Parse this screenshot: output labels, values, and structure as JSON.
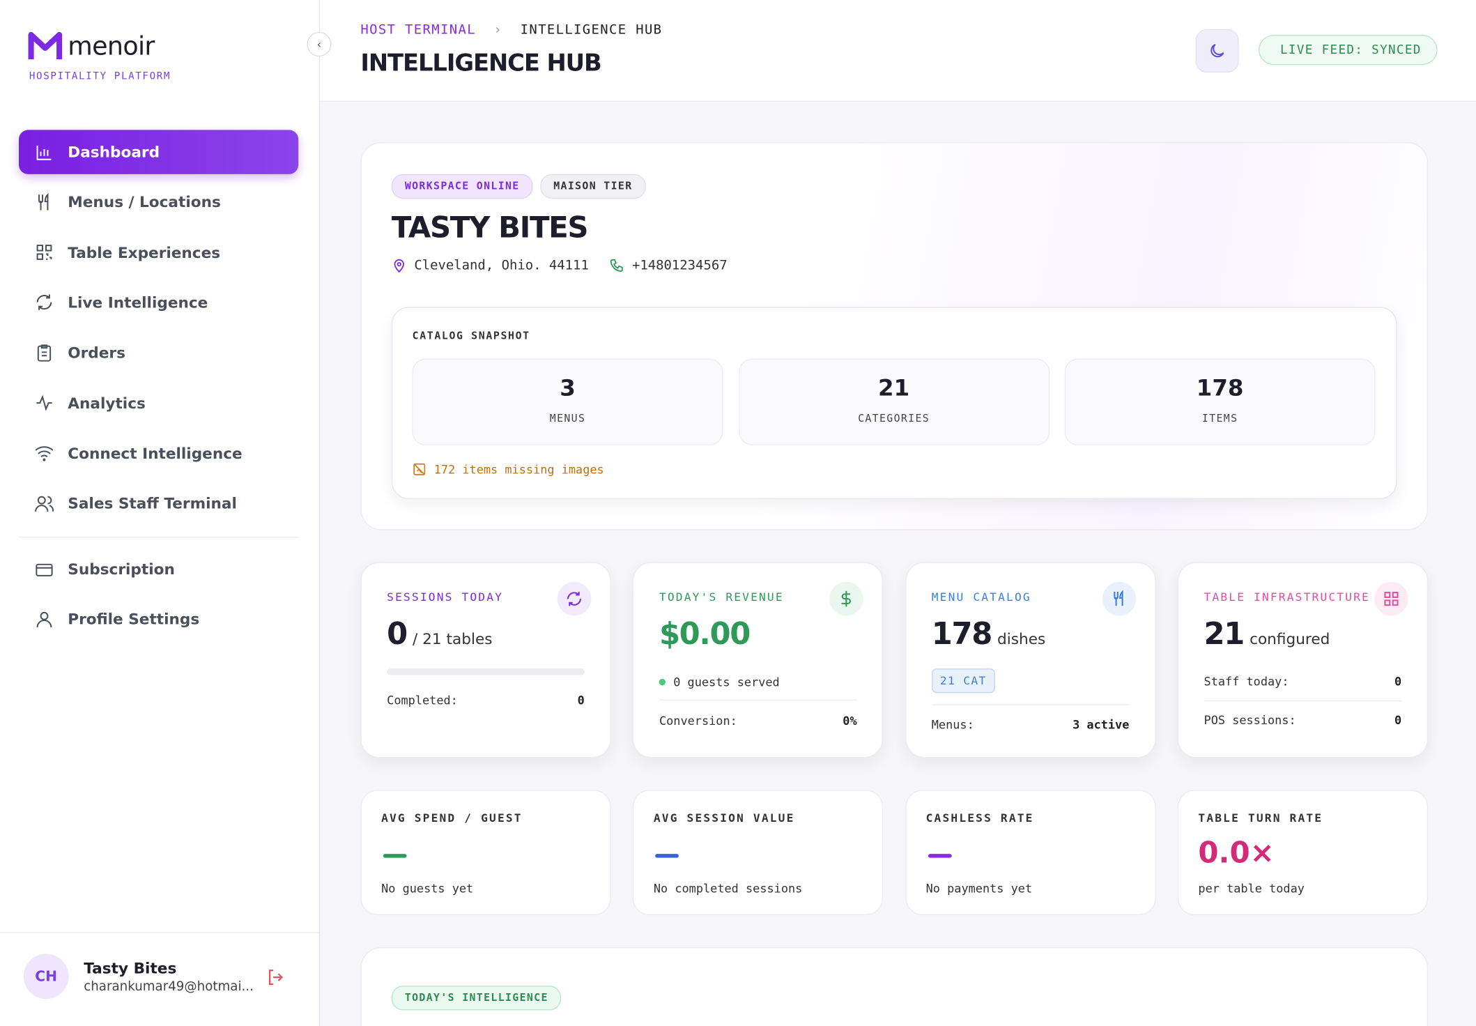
{
  "sidebar": {
    "brand": "menoir",
    "tagline": "HOSPITALITY PLATFORM",
    "nav": [
      "Dashboard",
      "Menus / Locations",
      "Table Experiences",
      "Live Intelligence",
      "Orders",
      "Analytics",
      "Connect Intelligence",
      "Sales Staff Terminal"
    ],
    "nav2": [
      "Subscription",
      "Profile Settings"
    ],
    "user": {
      "initials": "CH",
      "name": "Tasty Bites",
      "email": "charankumar49@hotmai..."
    }
  },
  "header": {
    "breadcrumb": [
      "HOST TERMINAL",
      "INTELLIGENCE HUB"
    ],
    "title": "INTELLIGENCE HUB",
    "status": "LIVE FEED: SYNCED"
  },
  "workspace": {
    "badges": [
      "WORKSPACE ONLINE",
      "MAISON TIER"
    ],
    "name": "TASTY BITES",
    "address": "Cleveland, Ohio. 44111",
    "phone": "+14801234567",
    "catalog": {
      "title": "CATALOG SNAPSHOT",
      "stats": [
        {
          "value": 3,
          "label": "MENUS"
        },
        {
          "value": 21,
          "label": "CATEGORIES"
        },
        {
          "value": 178,
          "label": "ITEMS"
        }
      ],
      "warning": "172 items missing images"
    }
  },
  "kpis": [
    {
      "title": "SESSIONS TODAY",
      "value": 0,
      "unit": "/ 21 tables",
      "rows": [
        [
          "Completed:",
          0
        ]
      ]
    },
    {
      "title": "TODAY'S REVENUE",
      "value": "$0.00",
      "note": "0 guests served",
      "rows": [
        [
          "Conversion:",
          "0%"
        ]
      ]
    },
    {
      "title": "MENU CATALOG",
      "value": 178,
      "unit": "dishes",
      "tag": "21 CAT",
      "rows": [
        [
          "Menus:",
          "3 active"
        ]
      ]
    },
    {
      "title": "TABLE INFRASTRUCTURE",
      "value": 21,
      "unit": "configured",
      "rows": [
        [
          "Staff today:",
          0
        ],
        [
          "POS sessions:",
          0
        ]
      ]
    }
  ],
  "metrics": [
    {
      "title": "AVG SPEND / GUEST",
      "note": "No guests yet"
    },
    {
      "title": "AVG SESSION VALUE",
      "note": "No completed sessions"
    },
    {
      "title": "CASHLESS RATE",
      "note": "No payments yet"
    },
    {
      "title": "TABLE TURN RATE",
      "value": "0.0×",
      "note": "per table today"
    }
  ],
  "intel": {
    "badge": "TODAY'S INTELLIGENCE"
  }
}
